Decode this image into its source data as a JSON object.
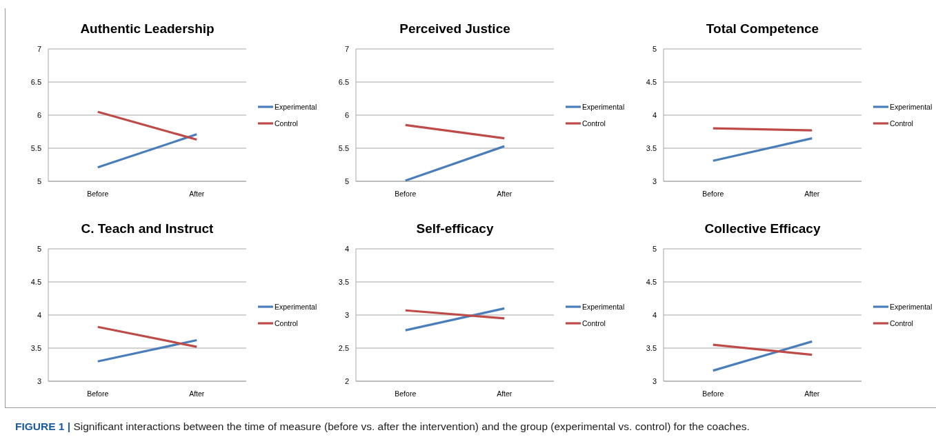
{
  "chart_data": [
    {
      "type": "line",
      "title": "Authentic Leadership",
      "categories": [
        "Before",
        "After"
      ],
      "ylim": [
        5,
        7
      ],
      "yticks": [
        5,
        5.5,
        6,
        6.5,
        7
      ],
      "grid": "y",
      "legend": "right",
      "series": [
        {
          "name": "Experimental",
          "color": "#4a7ebb",
          "values": [
            5.21,
            5.71
          ]
        },
        {
          "name": "Control",
          "color": "#be4b48",
          "values": [
            6.05,
            5.63
          ]
        }
      ]
    },
    {
      "type": "line",
      "title": "Perceived Justice",
      "categories": [
        "Before",
        "After"
      ],
      "ylim": [
        5,
        7
      ],
      "yticks": [
        5,
        5.5,
        6,
        6.5,
        7
      ],
      "grid": "y",
      "legend": "right",
      "series": [
        {
          "name": "Experimental",
          "color": "#4a7ebb",
          "values": [
            5.01,
            5.53
          ]
        },
        {
          "name": "Control",
          "color": "#be4b48",
          "values": [
            5.85,
            5.65
          ]
        }
      ]
    },
    {
      "type": "line",
      "title": "Total Competence",
      "categories": [
        "Before",
        "After"
      ],
      "ylim": [
        3,
        5
      ],
      "yticks": [
        3,
        3.5,
        4,
        4.5,
        5
      ],
      "grid": "y",
      "legend": "right",
      "series": [
        {
          "name": "Experimental",
          "color": "#4a7ebb",
          "values": [
            3.31,
            3.65
          ]
        },
        {
          "name": "Control",
          "color": "#be4b48",
          "values": [
            3.8,
            3.77
          ]
        }
      ]
    },
    {
      "type": "line",
      "title": "C. Teach and Instruct",
      "categories": [
        "Before",
        "After"
      ],
      "ylim": [
        3,
        5
      ],
      "yticks": [
        3,
        3.5,
        4,
        4.5,
        5
      ],
      "grid": "y",
      "legend": "right",
      "series": [
        {
          "name": "Experimental",
          "color": "#4a7ebb",
          "values": [
            3.3,
            3.62
          ]
        },
        {
          "name": "Control",
          "color": "#be4b48",
          "values": [
            3.82,
            3.52
          ]
        }
      ]
    },
    {
      "type": "line",
      "title": "Self-efficacy",
      "categories": [
        "Before",
        "After"
      ],
      "ylim": [
        2,
        4
      ],
      "yticks": [
        2,
        2.5,
        3,
        3.5,
        4
      ],
      "grid": "y",
      "legend": "right",
      "series": [
        {
          "name": "Experimental",
          "color": "#4a7ebb",
          "values": [
            2.77,
            3.1
          ]
        },
        {
          "name": "Control",
          "color": "#be4b48",
          "values": [
            3.07,
            2.95
          ]
        }
      ]
    },
    {
      "type": "line",
      "title": "Collective Efficacy",
      "categories": [
        "Before",
        "After"
      ],
      "ylim": [
        3,
        5
      ],
      "yticks": [
        3,
        3.5,
        4,
        4.5,
        5
      ],
      "grid": "y",
      "legend": "right",
      "annotations": [
        "FIGURE 1 | Significant interactions between the time of measure (before vs. after the intervention) and the group (experimental vs. control) for the coaches."
      ],
      "series": [
        {
          "name": "Experimental",
          "color": "#4a7ebb",
          "values": [
            3.16,
            3.6
          ]
        },
        {
          "name": "Control",
          "color": "#be4b48",
          "values": [
            3.55,
            3.4
          ]
        }
      ]
    }
  ]
}
